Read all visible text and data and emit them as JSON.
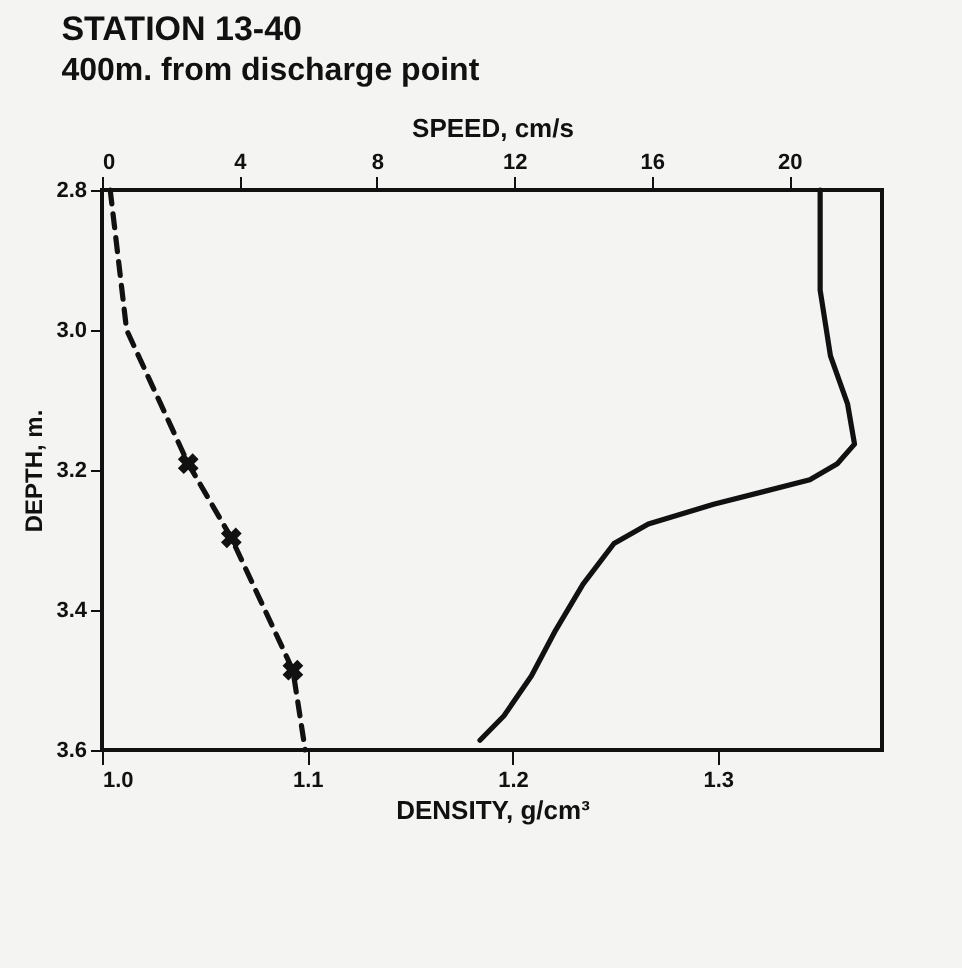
{
  "chart_data": {
    "type": "line",
    "title": "STATION 13-40",
    "subtitle": "400m. from discharge point",
    "xlabel": "DENSITY, g/cm³",
    "x2label": "SPEED, cm/s",
    "ylabel": "DEPTH, m.",
    "xlim": [
      1.0,
      1.38
    ],
    "xticks": [
      {
        "value": 1,
        "label": "1.0"
      },
      1.1,
      1.2,
      1.3
    ],
    "x2lim": [
      0,
      22.7
    ],
    "x2ticks": [
      0,
      4,
      8,
      12,
      16,
      20
    ],
    "ylim": [
      3.6,
      2.8
    ],
    "yticks": [
      2.8,
      {
        "value": 3,
        "label": "3.0"
      },
      3.2,
      3.4,
      3.6
    ],
    "series": [
      {
        "color": "#111111",
        "line_style": "dashed",
        "x": [
          1.004,
          1.012,
          1.042,
          1.063,
          1.093,
          1.099
        ],
        "values": [
          2.8,
          3.0,
          3.191,
          3.297,
          3.486,
          3.6
        ]
      },
      {
        "type": "scatter",
        "color": "#111111",
        "marker": "cross",
        "x": [
          1.042,
          1.063,
          1.093
        ],
        "values": [
          3.191,
          3.297,
          3.486
        ]
      },
      {
        "axis": "x2",
        "color": "#111111",
        "line_style": "solid",
        "x": [
          20.9,
          20.9,
          21.2,
          21.7,
          21.9,
          21.4,
          20.6,
          17.8,
          15.9,
          14.9,
          14.0,
          13.2,
          12.5,
          11.7,
          11.0
        ],
        "values": [
          2.8,
          2.943,
          3.037,
          3.106,
          3.163,
          3.191,
          3.214,
          3.249,
          3.277,
          3.305,
          3.363,
          3.429,
          3.494,
          3.551,
          3.586
        ]
      }
    ]
  }
}
